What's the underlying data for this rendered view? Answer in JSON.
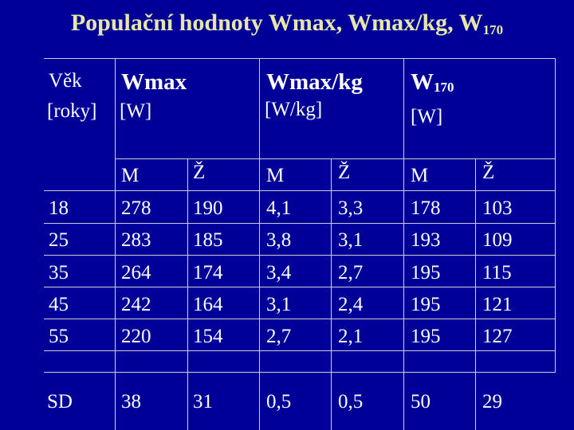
{
  "title": {
    "text": "Populační hodnoty Wmax, Wmax/kg, W",
    "sub": "170"
  },
  "header": {
    "age_label_1": "Věk",
    "age_label_2": "[roky]",
    "wmax_title": "Wmax",
    "wmax_unit": "[W]",
    "wmaxkg_title": "Wmax/kg",
    "wmaxkg_unit": "[W/kg]",
    "w170_title": "W",
    "w170_sub": "170",
    "w170_unit": "[W]"
  },
  "sex_labels": [
    "M",
    "Ž",
    "M",
    "Ž",
    "M",
    "Ž"
  ],
  "rows": [
    {
      "age": "18",
      "values": [
        "278",
        "190",
        "4,1",
        "3,3",
        "178",
        "103"
      ]
    },
    {
      "age": "25",
      "values": [
        "283",
        "185",
        "3,8",
        "3,1",
        "193",
        "109"
      ]
    },
    {
      "age": "35",
      "values": [
        "264",
        "174",
        "3,4",
        "2,7",
        "195",
        "115"
      ]
    },
    {
      "age": "45",
      "values": [
        "242",
        "164",
        "3,1",
        "2,4",
        "195",
        "121"
      ]
    },
    {
      "age": "55",
      "values": [
        "220",
        "154",
        "2,7",
        "2,1",
        "195",
        "127"
      ]
    }
  ],
  "sd_row": {
    "label": "SD",
    "values": [
      "38",
      "31",
      "0,5",
      "0,5",
      "50",
      "29"
    ]
  },
  "colors": {
    "background": "#000099",
    "title": "#e6e6a8",
    "text": "#ffffff",
    "grid": "#cfcfcf"
  }
}
